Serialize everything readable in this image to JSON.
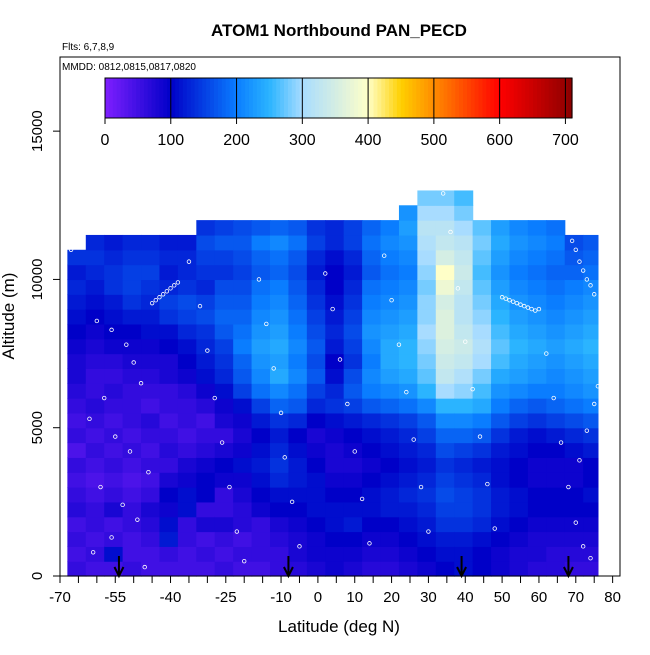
{
  "chart_data": {
    "type": "heatmap",
    "title": "ATOM1 Northbound PAN_PECD",
    "annotations": [
      "Flts: 6,7,8,9",
      "MMDD: 0812,0815,0817,0820"
    ],
    "xlabel": "Latitude (deg N)",
    "ylabel": "Altitude (m)",
    "xlim": [
      -70,
      82
    ],
    "ylim": [
      0,
      17500
    ],
    "x_tick_labels": [
      "-70",
      "-55",
      "-40",
      "-25",
      "-10",
      "0",
      "10",
      "20",
      "30",
      "40",
      "50",
      "60",
      "70",
      "80"
    ],
    "x_ticks_minor": [
      -65,
      -60,
      -50,
      -45,
      -35,
      -30,
      -20,
      -15,
      -5,
      5,
      15,
      25,
      35,
      45,
      55,
      65,
      75
    ],
    "y_ticks": [
      0,
      5000,
      10000,
      15000
    ],
    "y_tick_labels": [
      "0",
      "5000",
      "10000",
      "15000"
    ],
    "colorbar": {
      "min": 0,
      "max": 710,
      "tick_values": [
        0,
        100,
        200,
        300,
        400,
        500,
        600,
        700
      ],
      "tick_labels": [
        "0",
        "100",
        "200",
        "300",
        "400",
        "500",
        "600",
        "700"
      ],
      "color_stops": [
        {
          "v": 0,
          "c": "#7f1fff"
        },
        {
          "v": 100,
          "c": "#0000c8"
        },
        {
          "v": 200,
          "c": "#0a7dff"
        },
        {
          "v": 250,
          "c": "#2bb4ff"
        },
        {
          "v": 300,
          "c": "#a8dcff"
        },
        {
          "v": 400,
          "c": "#ffffc8"
        },
        {
          "v": 450,
          "c": "#ffd000"
        },
        {
          "v": 500,
          "c": "#ff8c00"
        },
        {
          "v": 600,
          "c": "#ff0000"
        },
        {
          "v": 710,
          "c": "#8b0000"
        }
      ]
    },
    "flight_boundary_latitudes": [
      -54,
      -8,
      39,
      68
    ],
    "altitude_step_m": 500,
    "columns": [
      {
        "x0": -68,
        "x1": -63,
        "top": 11000,
        "v": [
          60,
          50,
          60,
          50,
          70,
          60,
          50,
          60,
          40,
          60,
          50,
          60,
          70,
          80,
          80,
          90,
          100,
          110,
          120,
          130,
          120,
          140
        ]
      },
      {
        "x0": -63,
        "x1": -58,
        "top": 11500,
        "v": [
          50,
          60,
          50,
          60,
          60,
          50,
          40,
          50,
          60,
          50,
          60,
          70,
          60,
          60,
          70,
          80,
          90,
          100,
          110,
          120,
          130,
          140,
          130
        ]
      },
      {
        "x0": -58,
        "x1": -53,
        "top": 11500,
        "v": [
          50,
          110,
          60,
          50,
          80,
          60,
          50,
          60,
          50,
          60,
          50,
          60,
          70,
          60,
          70,
          90,
          100,
          110,
          120,
          140,
          140,
          130,
          120
        ]
      },
      {
        "x0": -53,
        "x1": -48,
        "top": 11500,
        "v": [
          60,
          50,
          50,
          60,
          60,
          50,
          40,
          50,
          60,
          50,
          60,
          60,
          60,
          70,
          80,
          90,
          100,
          120,
          140,
          150,
          150,
          140,
          130
        ]
      },
      {
        "x0": -48,
        "x1": -43,
        "top": 11500,
        "v": [
          50,
          50,
          60,
          70,
          80,
          60,
          50,
          60,
          50,
          60,
          70,
          50,
          60,
          70,
          80,
          90,
          110,
          120,
          130,
          140,
          150,
          140,
          130
        ]
      },
      {
        "x0": -43,
        "x1": -38,
        "top": 11500,
        "v": [
          50,
          60,
          120,
          110,
          90,
          100,
          80,
          60,
          70,
          60,
          50,
          60,
          60,
          80,
          80,
          100,
          110,
          140,
          150,
          130,
          120,
          130,
          120
        ]
      },
      {
        "x0": -38,
        "x1": -33,
        "top": 11500,
        "v": [
          50,
          50,
          60,
          60,
          110,
          110,
          90,
          80,
          60,
          50,
          60,
          60,
          70,
          90,
          100,
          110,
          130,
          150,
          160,
          140,
          130,
          130,
          120
        ]
      },
      {
        "x0": -33,
        "x1": -28,
        "top": 12000,
        "v": [
          50,
          60,
          50,
          80,
          60,
          100,
          100,
          90,
          70,
          60,
          50,
          70,
          90,
          110,
          120,
          130,
          140,
          160,
          150,
          130,
          140,
          150,
          160,
          140
        ]
      },
      {
        "x0": -28,
        "x1": -23,
        "top": 12000,
        "v": [
          60,
          50,
          60,
          80,
          60,
          60,
          90,
          100,
          80,
          60,
          80,
          90,
          110,
          130,
          140,
          150,
          170,
          180,
          170,
          160,
          140,
          150,
          170,
          150
        ]
      },
      {
        "x0": -23,
        "x1": -18,
        "top": 12000,
        "v": [
          50,
          60,
          50,
          70,
          70,
          80,
          90,
          110,
          90,
          80,
          90,
          110,
          150,
          170,
          180,
          200,
          190,
          180,
          170,
          160,
          150,
          160,
          170,
          160
        ]
      },
      {
        "x0": -18,
        "x1": -13,
        "top": 12000,
        "v": [
          50,
          60,
          60,
          60,
          90,
          100,
          110,
          120,
          110,
          100,
          120,
          150,
          190,
          210,
          220,
          230,
          220,
          210,
          200,
          190,
          170,
          180,
          200,
          170
        ]
      },
      {
        "x0": -13,
        "x1": -8,
        "top": 12000,
        "v": [
          60,
          60,
          70,
          80,
          100,
          110,
          130,
          140,
          130,
          120,
          140,
          180,
          210,
          240,
          230,
          240,
          230,
          220,
          210,
          200,
          180,
          190,
          210,
          180
        ]
      },
      {
        "x0": -8,
        "x1": -3,
        "top": 12000,
        "v": [
          70,
          80,
          80,
          90,
          100,
          110,
          120,
          120,
          110,
          100,
          130,
          170,
          190,
          210,
          200,
          210,
          200,
          190,
          180,
          170,
          160,
          170,
          190,
          170
        ]
      },
      {
        "x0": -3,
        "x1": 2,
        "top": 12000,
        "v": [
          80,
          90,
          90,
          100,
          110,
          110,
          110,
          100,
          90,
          80,
          100,
          130,
          150,
          170,
          160,
          170,
          160,
          150,
          140,
          130,
          120,
          130,
          150,
          140
        ]
      },
      {
        "x0": 2,
        "x1": 7,
        "top": 12000,
        "v": [
          90,
          90,
          100,
          110,
          110,
          100,
          90,
          80,
          80,
          90,
          110,
          140,
          130,
          110,
          100,
          120,
          130,
          120,
          110,
          100,
          100,
          110,
          130,
          130
        ]
      },
      {
        "x0": 7,
        "x1": 12,
        "top": 12000,
        "v": [
          80,
          90,
          100,
          120,
          110,
          100,
          90,
          80,
          90,
          100,
          120,
          150,
          170,
          160,
          140,
          150,
          160,
          150,
          140,
          130,
          120,
          130,
          150,
          150
        ]
      },
      {
        "x0": 12,
        "x1": 17,
        "top": 12000,
        "v": [
          70,
          80,
          90,
          100,
          110,
          110,
          100,
          90,
          100,
          110,
          130,
          170,
          200,
          210,
          200,
          210,
          220,
          210,
          200,
          190,
          170,
          180,
          190,
          180
        ]
      },
      {
        "x0": 17,
        "x1": 22,
        "top": 12000,
        "v": [
          70,
          80,
          90,
          100,
          120,
          120,
          110,
          100,
          110,
          120,
          140,
          180,
          210,
          230,
          240,
          240,
          230,
          220,
          210,
          200,
          190,
          200,
          210,
          200
        ]
      },
      {
        "x0": 22,
        "x1": 27,
        "top": 12500,
        "v": [
          80,
          90,
          100,
          110,
          120,
          130,
          120,
          110,
          120,
          130,
          150,
          190,
          220,
          240,
          250,
          250,
          240,
          230,
          220,
          210,
          200,
          210,
          220,
          230,
          220
        ]
      },
      {
        "x0": 27,
        "x1": 32,
        "top": 13000,
        "v": [
          90,
          100,
          110,
          120,
          130,
          140,
          130,
          120,
          130,
          150,
          170,
          210,
          250,
          270,
          280,
          290,
          300,
          290,
          290,
          280,
          290,
          300,
          310,
          320,
          300,
          280
        ]
      },
      {
        "x0": 32,
        "x1": 37,
        "top": 13000,
        "v": [
          100,
          110,
          120,
          140,
          150,
          160,
          150,
          140,
          160,
          180,
          210,
          250,
          300,
          330,
          340,
          350,
          360,
          360,
          350,
          380,
          400,
          350,
          330,
          320,
          300,
          280
        ]
      },
      {
        "x0": 37,
        "x1": 42,
        "top": 13000,
        "v": [
          110,
          110,
          120,
          140,
          150,
          150,
          140,
          130,
          150,
          180,
          210,
          250,
          290,
          310,
          330,
          340,
          330,
          320,
          320,
          330,
          340,
          330,
          320,
          300,
          280,
          260
        ]
      },
      {
        "x0": 42,
        "x1": 47,
        "top": 12000,
        "v": [
          100,
          100,
          110,
          130,
          140,
          140,
          130,
          120,
          140,
          170,
          200,
          240,
          260,
          280,
          300,
          310,
          300,
          290,
          280,
          270,
          260,
          270,
          280,
          270
        ]
      },
      {
        "x0": 47,
        "x1": 52,
        "top": 12000,
        "v": [
          90,
          90,
          100,
          110,
          120,
          120,
          110,
          110,
          120,
          140,
          170,
          200,
          220,
          240,
          260,
          270,
          260,
          250,
          240,
          230,
          220,
          230,
          240,
          230
        ]
      },
      {
        "x0": 52,
        "x1": 57,
        "top": 12000,
        "v": [
          80,
          80,
          90,
          100,
          110,
          110,
          100,
          100,
          110,
          120,
          150,
          180,
          210,
          230,
          240,
          250,
          240,
          230,
          220,
          210,
          200,
          210,
          220,
          210
        ]
      },
      {
        "x0": 57,
        "x1": 62,
        "top": 12000,
        "v": [
          70,
          80,
          80,
          90,
          100,
          100,
          90,
          90,
          100,
          110,
          140,
          170,
          200,
          220,
          230,
          240,
          230,
          220,
          210,
          200,
          190,
          200,
          210,
          200
        ]
      },
      {
        "x0": 62,
        "x1": 67,
        "top": 12000,
        "v": [
          70,
          70,
          80,
          90,
          100,
          100,
          90,
          90,
          100,
          120,
          150,
          180,
          200,
          210,
          220,
          230,
          220,
          210,
          200,
          190,
          180,
          190,
          200,
          190
        ]
      },
      {
        "x0": 67,
        "x1": 72,
        "top": 11500,
        "v": [
          60,
          70,
          80,
          90,
          100,
          100,
          90,
          90,
          110,
          130,
          160,
          190,
          210,
          220,
          230,
          240,
          230,
          220,
          210,
          200,
          180,
          170,
          160
        ]
      },
      {
        "x0": 72,
        "x1": 76,
        "top": 11500,
        "v": [
          60,
          70,
          80,
          90,
          100,
          110,
          100,
          100,
          120,
          140,
          170,
          200,
          220,
          230,
          240,
          250,
          240,
          230,
          220,
          210,
          190,
          180,
          170
        ]
      }
    ],
    "sample_points": [
      [
        -67,
        11000
      ],
      [
        -66,
        11200
      ],
      [
        -65,
        11400
      ],
      [
        -64,
        11500
      ],
      [
        -63,
        11600
      ],
      [
        -62,
        11700
      ],
      [
        -45,
        9200
      ],
      [
        -44,
        9300
      ],
      [
        -43,
        9400
      ],
      [
        -42,
        9500
      ],
      [
        -41,
        9600
      ],
      [
        -40,
        9700
      ],
      [
        -39,
        9800
      ],
      [
        -38,
        9900
      ],
      [
        -60,
        8600
      ],
      [
        -56,
        8300
      ],
      [
        -52,
        7800
      ],
      [
        -50,
        7200
      ],
      [
        -48,
        6500
      ],
      [
        -58,
        6000
      ],
      [
        -62,
        5300
      ],
      [
        -55,
        4700
      ],
      [
        -51,
        4200
      ],
      [
        -46,
        3500
      ],
      [
        -59,
        3000
      ],
      [
        -53,
        2400
      ],
      [
        -49,
        1900
      ],
      [
        -56,
        1300
      ],
      [
        -61,
        800
      ],
      [
        -47,
        300
      ],
      [
        -35,
        10600
      ],
      [
        -32,
        9100
      ],
      [
        -30,
        7600
      ],
      [
        -28,
        6000
      ],
      [
        -26,
        4500
      ],
      [
        -24,
        3000
      ],
      [
        -22,
        1500
      ],
      [
        -20,
        500
      ],
      [
        -16,
        10000
      ],
      [
        -14,
        8500
      ],
      [
        -12,
        7000
      ],
      [
        -10,
        5500
      ],
      [
        -9,
        4000
      ],
      [
        -7,
        2500
      ],
      [
        -5,
        1000
      ],
      [
        2,
        10200
      ],
      [
        4,
        9000
      ],
      [
        6,
        7300
      ],
      [
        8,
        5800
      ],
      [
        10,
        4200
      ],
      [
        12,
        2600
      ],
      [
        14,
        1100
      ],
      [
        18,
        10800
      ],
      [
        20,
        9300
      ],
      [
        22,
        7800
      ],
      [
        24,
        6200
      ],
      [
        26,
        4600
      ],
      [
        28,
        3000
      ],
      [
        30,
        1500
      ],
      [
        34,
        12900
      ],
      [
        36,
        11600
      ],
      [
        38,
        9700
      ],
      [
        40,
        7900
      ],
      [
        42,
        6300
      ],
      [
        44,
        4700
      ],
      [
        46,
        3100
      ],
      [
        48,
        1600
      ],
      [
        50,
        9400
      ],
      [
        51,
        9350
      ],
      [
        52,
        9300
      ],
      [
        53,
        9250
      ],
      [
        54,
        9200
      ],
      [
        55,
        9150
      ],
      [
        56,
        9100
      ],
      [
        57,
        9050
      ],
      [
        58,
        9000
      ],
      [
        59,
        8950
      ],
      [
        60,
        9000
      ],
      [
        62,
        7500
      ],
      [
        64,
        6000
      ],
      [
        66,
        4500
      ],
      [
        68,
        3000
      ],
      [
        70,
        1800
      ],
      [
        72,
        1000
      ],
      [
        74,
        600
      ],
      [
        69,
        11300
      ],
      [
        70,
        11000
      ],
      [
        71,
        10600
      ],
      [
        72,
        10300
      ],
      [
        73,
        10000
      ],
      [
        74,
        9800
      ],
      [
        75,
        9500
      ],
      [
        76,
        6400
      ],
      [
        75,
        5800
      ],
      [
        73,
        4900
      ],
      [
        71,
        3900
      ]
    ]
  }
}
